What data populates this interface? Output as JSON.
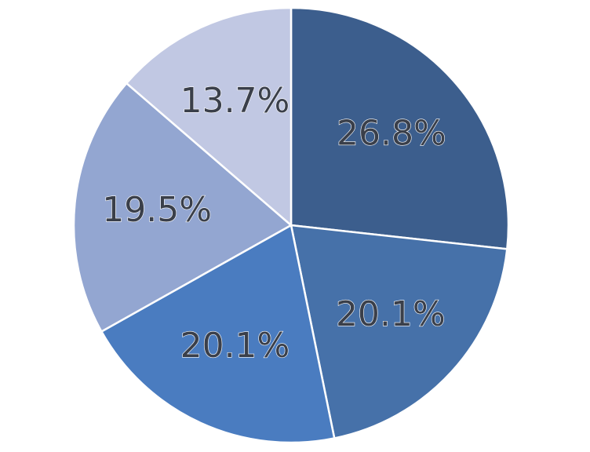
{
  "chart_data": {
    "type": "pie",
    "values": [
      26.8,
      20.1,
      20.1,
      19.5,
      13.7
    ],
    "value_labels": [
      "26.8%",
      "20.1%",
      "20.1%",
      "19.5%",
      "13.7%"
    ],
    "colors": [
      "#3c5e8d",
      "#4671a9",
      "#4a7cc0",
      "#93a6d1",
      "#c1c8e3"
    ]
  }
}
